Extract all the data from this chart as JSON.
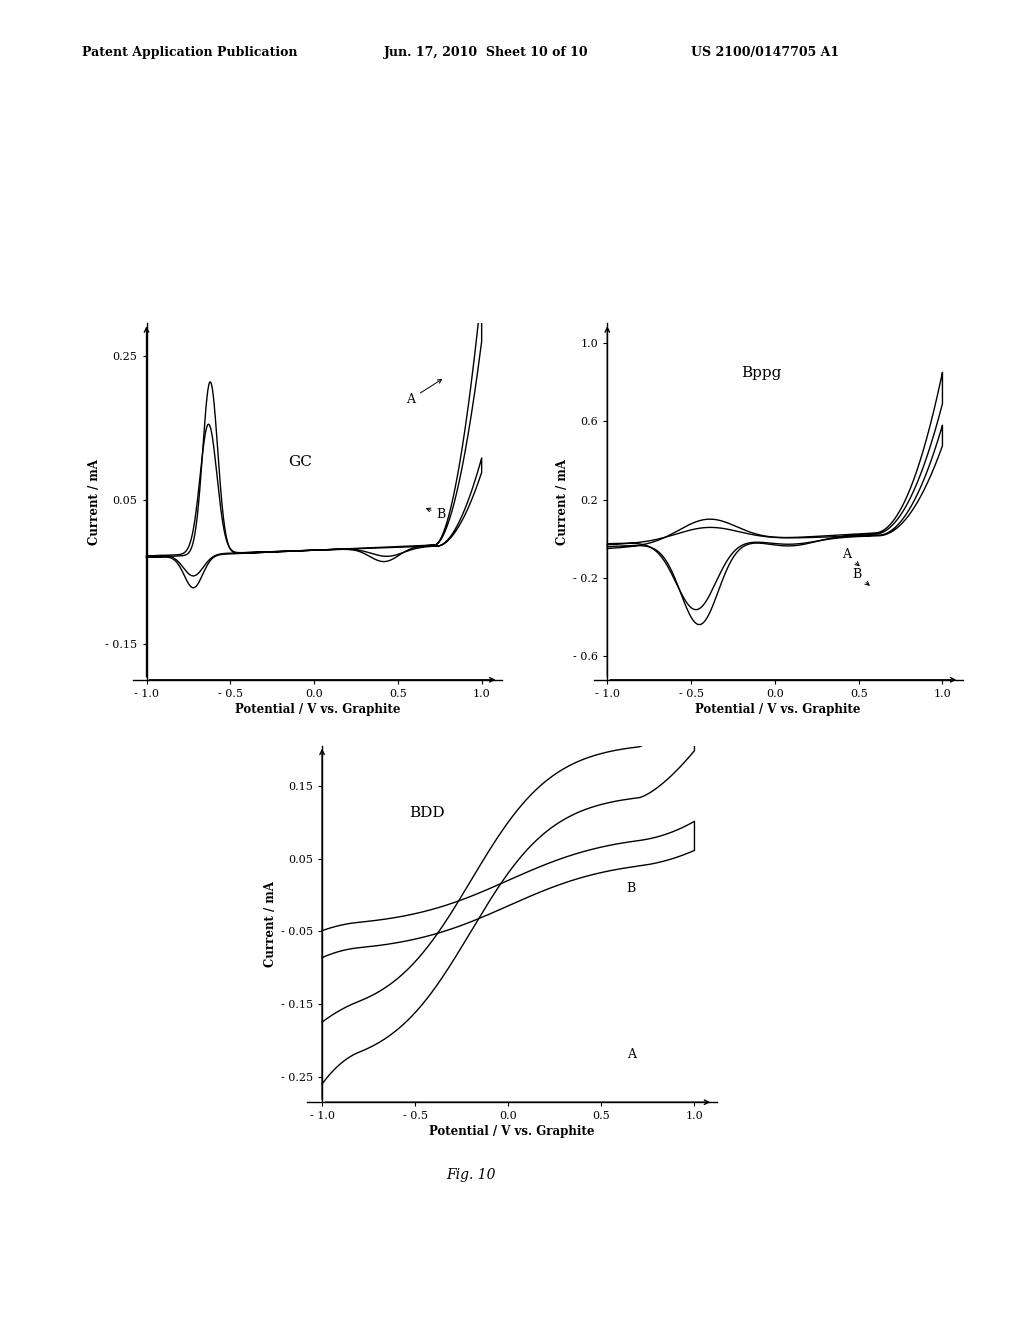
{
  "header_left": "Patent Application Publication",
  "header_center": "Jun. 17, 2010  Sheet 10 of 10",
  "header_right": "US 2100/0147705 A1",
  "fig_label": "Fig. 10",
  "xlabel": "Potential / V vs. Graphite",
  "ylabel": "Current / mA",
  "bg_color": "#ffffff"
}
